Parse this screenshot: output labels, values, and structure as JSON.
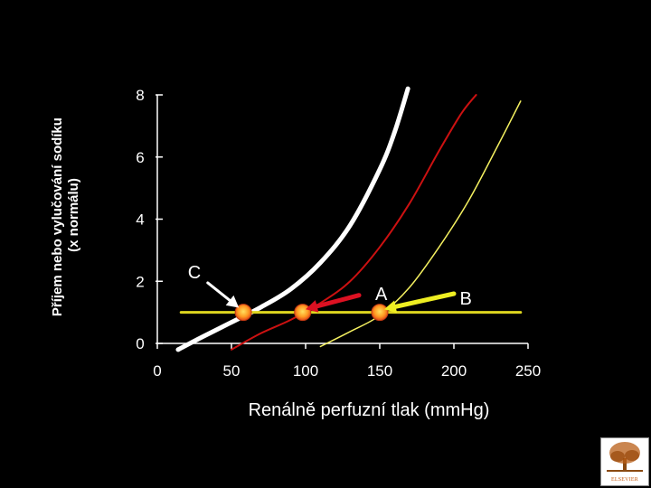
{
  "chart_data": {
    "type": "line",
    "title": "",
    "xlabel": "Renálně perfuzní tlak (mmHg)",
    "ylabel_lines": [
      "Příjem nebo vylučování sodíku",
      "(x normálu)"
    ],
    "xlim": [
      0,
      250
    ],
    "ylim": [
      0,
      8
    ],
    "xticks": [
      0,
      50,
      100,
      150,
      200,
      250
    ],
    "yticks": [
      0,
      2,
      4,
      6,
      8
    ],
    "grid": false,
    "legend": "none",
    "background_color": "#000000",
    "axis_color": "#ffffff",
    "series": [
      {
        "color": "#ffffff",
        "x": [
          14,
          30,
          50,
          70,
          90,
          110,
          130,
          150,
          160,
          169
        ],
        "y": [
          -0.2,
          0.2,
          0.68,
          1.17,
          1.75,
          2.6,
          3.8,
          5.6,
          6.8,
          8.2
        ]
      },
      {
        "color": "#cc1111",
        "x": [
          50,
          70,
          90,
          110,
          130,
          150,
          170,
          190,
          205,
          215
        ],
        "y": [
          -0.2,
          0.33,
          0.76,
          1.3,
          2.0,
          3.1,
          4.5,
          6.2,
          7.4,
          8.0
        ]
      },
      {
        "color": "#f4f060",
        "x": [
          110,
          130,
          150,
          170,
          190,
          210,
          230,
          245
        ],
        "y": [
          -0.1,
          0.38,
          0.9,
          1.8,
          3.1,
          4.6,
          6.4,
          7.8
        ]
      },
      {
        "color": "#ddd51f",
        "x": [
          16,
          245
        ],
        "y": [
          1.0,
          1.0
        ]
      }
    ],
    "equilibrium_points": [
      {
        "x": 58,
        "y": 1.0
      },
      {
        "x": 98,
        "y": 1.0
      },
      {
        "x": 150,
        "y": 1.0
      }
    ],
    "annotations": [
      {
        "label": "C",
        "color": "#ffffff",
        "text_x": 25,
        "text_y": 2.1,
        "from_x": 34,
        "from_y": 1.95,
        "to_x": 55,
        "to_y": 1.15
      },
      {
        "label": "A",
        "color": "#dd1122",
        "text_x": 151,
        "text_y": 1.4,
        "from_x": 136,
        "from_y": 1.55,
        "to_x": 100,
        "to_y": 1.1
      },
      {
        "label": "B",
        "color": "#ffffff",
        "arrow_color": "#eeee22",
        "text_x": 208,
        "text_y": 1.25,
        "from_x": 200,
        "from_y": 1.6,
        "to_x": 153,
        "to_y": 1.1
      }
    ]
  },
  "logo": {
    "text": "ELSEVIER"
  }
}
